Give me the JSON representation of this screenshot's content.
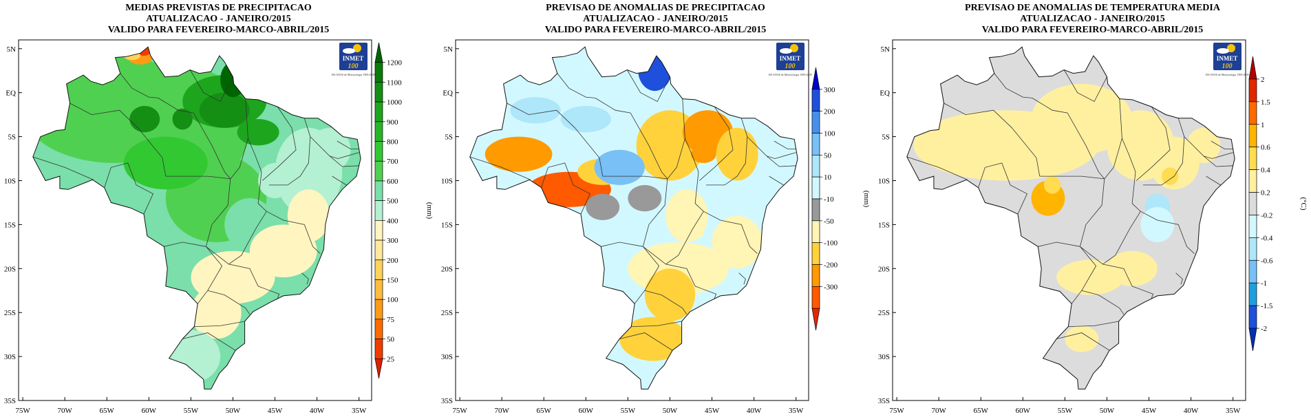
{
  "colors": {
    "background": "#ffffff",
    "border": "#000000",
    "land_default": "#ffffff"
  },
  "axes": {
    "lat_labels": [
      "5N",
      "EQ",
      "5S",
      "10S",
      "15S",
      "20S",
      "25S",
      "30S",
      "35S"
    ],
    "lon_labels": [
      "75W",
      "70W",
      "65W",
      "60W",
      "55W",
      "50W",
      "45W",
      "40W",
      "35W"
    ]
  },
  "logo": {
    "name": "INMET",
    "number": "100",
    "caption": "100 ANOS de Meteorologia 1909-2009"
  },
  "panels": [
    {
      "id": "precip",
      "title": [
        "MEDIAS PREVISTAS DE PRECIPITACAO",
        "ATUALIZACAO - JANEIRO/2015",
        "VALIDO PARA FEVEREIRO-MARCO-ABRIL/2015"
      ],
      "unit": "(mm)",
      "scale_levels": [
        "1200",
        "1100",
        "1000",
        "900",
        "800",
        "700",
        "600",
        "500",
        "400",
        "300",
        "200",
        "150",
        "100",
        "75",
        "50",
        "25"
      ],
      "scale_colors": [
        "#006400",
        "#0a7a0a",
        "#148f14",
        "#1ea51e",
        "#28b428",
        "#32c832",
        "#50d050",
        "#7adfaa",
        "#b4f0d2",
        "#fff5c0",
        "#ffe89a",
        "#ffd25a",
        "#ffbc3c",
        "#ff9a14",
        "#ff6a00",
        "#f03c00",
        "#e01e00"
      ]
    },
    {
      "id": "anomaly_precip",
      "title": [
        "PREVISAO DE ANOMALIAS DE PRECIPITACAO",
        "ATUALIZACAO - JANEIRO/2015",
        "VALIDO PARA FEVEREIRO-MARCO-ABRIL/2015"
      ],
      "unit": "(mm)",
      "scale_levels": [
        "300",
        "200",
        "100",
        "50",
        "10",
        "-10",
        "-50",
        "-100",
        "-200",
        "-300"
      ],
      "scale_colors": [
        "#0000c8",
        "#1e50dc",
        "#4690eb",
        "#78c0f5",
        "#aee6fa",
        "#d2f8ff",
        "#999999",
        "#fff5b4",
        "#ffd23c",
        "#ff9a00",
        "#ff5a00",
        "#e02800"
      ]
    },
    {
      "id": "anomaly_temp",
      "title": [
        "PREVISAO DE ANOMALIAS DE TEMPERATURA MEDIA",
        "ATUALIZACAO - JANEIRO/2015",
        "VALIDO PARA FEVEREIRO-MARCO-ABRIL/2015"
      ],
      "unit": "(°C)",
      "scale_levels": [
        "2",
        "1.5",
        "1",
        "0.6",
        "0.4",
        "0.2",
        "-0.2",
        "-0.4",
        "-0.6",
        "-1",
        "-1.5",
        "-2"
      ],
      "scale_colors": [
        "#b40000",
        "#e02800",
        "#ff6a00",
        "#ffb400",
        "#ffdc50",
        "#fff0a0",
        "#dcdcdc",
        "#d2f8ff",
        "#aee6fa",
        "#78c0f5",
        "#1ea0dc",
        "#1e50dc",
        "#0032b4"
      ]
    }
  ]
}
